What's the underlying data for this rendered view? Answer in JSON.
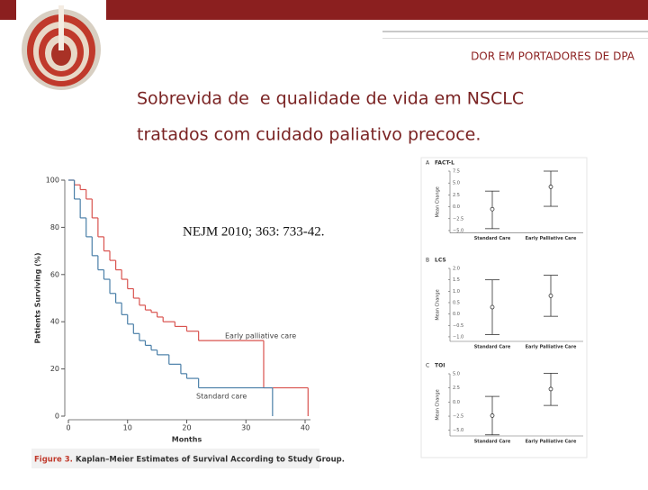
{
  "header": {
    "tagline": "DOR EM PORTADORES DE DPA"
  },
  "title": [
    "Sobrevida de  e qualidade de vida em NSCLC",
    "tratados com cuidado paliativo precoce."
  ],
  "reference": "NEJM 2010; 363: 733-42.",
  "caption": {
    "label": "Figure 3.",
    "text": "Kaplan–Meier Estimates of Survival According to Study Group."
  },
  "chart_data": [
    {
      "type": "line",
      "step": true,
      "xlabel": "Months",
      "ylabel": "Patients Surviving (%)",
      "xlim": [
        0,
        40
      ],
      "ylim": [
        0,
        100
      ],
      "xticks": [
        0,
        10,
        20,
        30,
        40
      ],
      "yticks": [
        0,
        20,
        40,
        60,
        80,
        100
      ],
      "series": [
        {
          "name": "Early palliative care",
          "color": "#d9534f",
          "x": [
            0,
            1,
            2,
            3,
            4,
            5,
            6,
            7,
            8,
            9,
            10,
            11,
            12,
            13,
            14,
            15,
            16,
            18,
            20,
            22,
            33,
            40.5
          ],
          "values": [
            100,
            98,
            96,
            92,
            84,
            76,
            70,
            66,
            62,
            58,
            54,
            50,
            47,
            45,
            44,
            42,
            40,
            38,
            36,
            32,
            12,
            0
          ]
        },
        {
          "name": "Standard care",
          "color": "#4a7fa8",
          "x": [
            0,
            1,
            2,
            3,
            4,
            5,
            6,
            7,
            8,
            9,
            10,
            11,
            12,
            13,
            14,
            15,
            17,
            19,
            20,
            22,
            34.5
          ],
          "values": [
            100,
            92,
            84,
            76,
            68,
            62,
            58,
            52,
            48,
            43,
            39,
            35,
            32,
            30,
            28,
            26,
            22,
            18,
            16,
            12,
            0
          ]
        }
      ]
    },
    {
      "type": "errorbar",
      "panel": "A",
      "title": "FACT-L",
      "ylabel": "Mean Change",
      "categories": [
        "Standard Care",
        "Early Palliative Care"
      ],
      "values": [
        -0.5,
        4.2
      ],
      "lower": [
        -4.6,
        0.1
      ],
      "upper": [
        3.3,
        7.5
      ],
      "ylim": [
        -5.5,
        7.5
      ],
      "yticks": [
        {
          "value": 7.5,
          "label": "7.5"
        },
        {
          "value": 5,
          "label": "5.0"
        },
        {
          "value": 2.5,
          "label": "2.5"
        },
        {
          "value": 0,
          "label": "0.0"
        },
        {
          "value": -2.5,
          "label": "−2.5"
        },
        {
          "value": -5,
          "label": "−5.0"
        }
      ]
    },
    {
      "type": "errorbar",
      "panel": "B",
      "title": "LCS",
      "ylabel": "Mean Change",
      "categories": [
        "Standard Care",
        "Early Palliative Care"
      ],
      "values": [
        0.3,
        0.8
      ],
      "lower": [
        -0.9,
        -0.1
      ],
      "upper": [
        1.5,
        1.7
      ],
      "ylim": [
        -1.2,
        2
      ],
      "yticks": [
        {
          "value": 2,
          "label": "2.0"
        },
        {
          "value": 1.5,
          "label": "1.5"
        },
        {
          "value": 1,
          "label": "1.0"
        },
        {
          "value": 0.5,
          "label": "0.5"
        },
        {
          "value": 0,
          "label": "0.0"
        },
        {
          "value": -0.5,
          "label": "−0.5"
        },
        {
          "value": -1,
          "label": "−1.0"
        }
      ]
    },
    {
      "type": "errorbar",
      "panel": "C",
      "title": "TOI",
      "ylabel": "Mean Change",
      "categories": [
        "Standard Care",
        "Early Palliative Care"
      ],
      "values": [
        -2.4,
        2.3
      ],
      "lower": [
        -5.8,
        -0.6
      ],
      "upper": [
        1.0,
        5.1
      ],
      "ylim": [
        -6,
        5
      ],
      "yticks": [
        {
          "value": 5,
          "label": "5.0"
        },
        {
          "value": 2.5,
          "label": "2.5"
        },
        {
          "value": 0,
          "label": "0.0"
        },
        {
          "value": -2.5,
          "label": "−2.5"
        },
        {
          "value": -5,
          "label": "−5.0"
        }
      ]
    }
  ]
}
